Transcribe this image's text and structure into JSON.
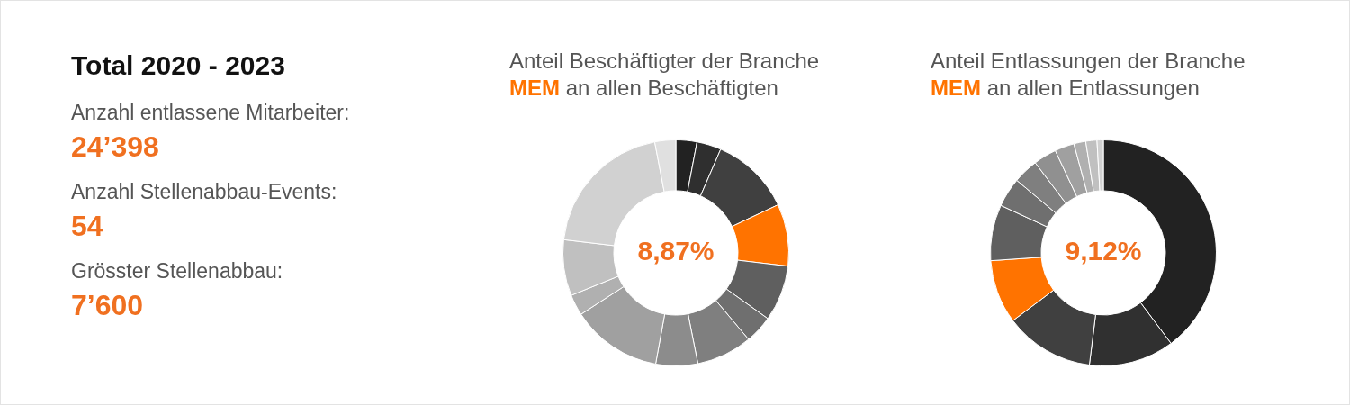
{
  "chart_data": [
    {
      "type": "other",
      "title": "Total 2020 - 2023",
      "annotations": [
        "Anzahl entlassene Mitarbeiter:",
        "24’398",
        "Anzahl Stellenabbau-Events:",
        "54",
        "Grösster Stellenabbau:",
        "7’600"
      ]
    },
    {
      "type": "donut",
      "title": "Anteil Beschäftigter der Branche",
      "subtitle": "MEM an allen Beschäftigten",
      "annotations": [
        "8,87%"
      ],
      "categories": [
        null,
        null,
        null,
        null,
        null,
        null,
        null,
        null,
        null,
        null,
        null,
        null,
        null
      ],
      "values": [
        3,
        3.5,
        11.5,
        8.87,
        8,
        4,
        8,
        6,
        13,
        3,
        8,
        20.13,
        3
      ],
      "colors": [
        "#222222",
        "#2f2f2f",
        "#404040",
        "#ff7300",
        "#5f5f5f",
        "#6f6f6f",
        "#7f7f7f",
        "#8c8c8c",
        "#a0a0a0",
        "#b0b0b0",
        "#c0c0c0",
        "#d1d1d1",
        "#e0e0e0"
      ]
    },
    {
      "type": "donut",
      "title": "Anteil Entlassungen der Branche",
      "subtitle": "MEM an allen Entlassungen",
      "annotations": [
        "9,12%"
      ],
      "categories": [
        null,
        null,
        null,
        null,
        null,
        null,
        null,
        null,
        null,
        null,
        null,
        null
      ],
      "values": [
        39.78,
        12.2,
        12.8,
        9.12,
        8,
        4.2,
        3.6,
        3.3,
        2.8,
        1.7,
        1.6,
        0.9
      ],
      "colors": [
        "#222222",
        "#303030",
        "#404040",
        "#ff7300",
        "#5f5f5f",
        "#6f6f6f",
        "#7f7f7f",
        "#909090",
        "#a0a0a0",
        "#b0b0b0",
        "#c0c0c0",
        "#d1d1d1"
      ]
    }
  ]
}
